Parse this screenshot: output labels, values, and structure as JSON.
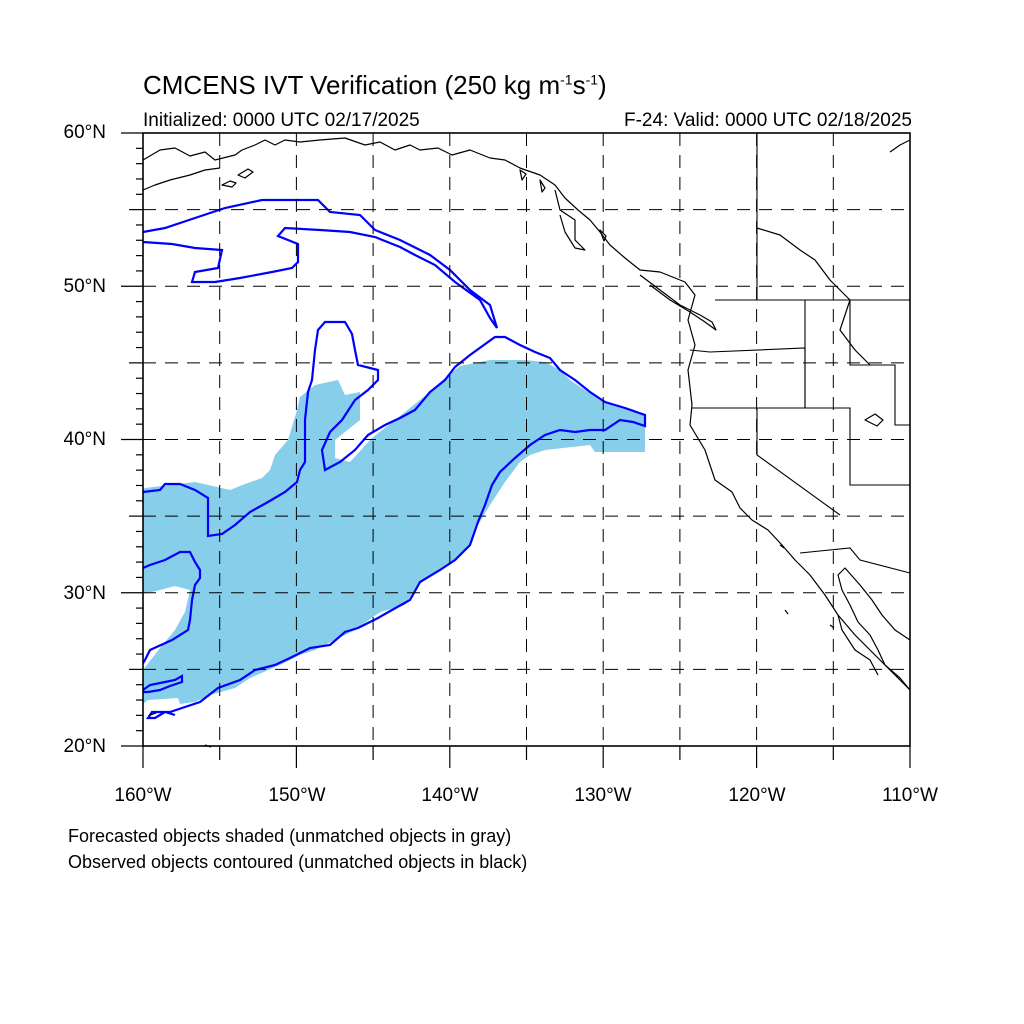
{
  "title": {
    "main": "CMCENS IVT Verification (250 kg m",
    "sup1": "-1",
    "mid": "s",
    "sup2": "-1",
    "end": ")"
  },
  "subtitle": {
    "initialized": "Initialized: 0000 UTC 02/17/2025",
    "valid": "F-24: Valid: 0000 UTC 02/18/2025"
  },
  "map": {
    "lon_range": [
      -160,
      -110
    ],
    "lat_range": [
      20,
      60
    ],
    "lat_ticks": [
      "20°N",
      "30°N",
      "40°N",
      "50°N",
      "60°N"
    ],
    "lon_ticks": [
      "160°W",
      "150°W",
      "140°W",
      "130°W",
      "120°W",
      "110°W"
    ],
    "gridlines": "dashed",
    "colors": {
      "forecast_fill": "#87ceeb",
      "observed_contour": "#0000ff",
      "coastline": "#000000"
    }
  },
  "notes": {
    "line1": "Forecasted objects shaded (unmatched objects in gray)",
    "line2": "Observed objects contoured (unmatched objects in black)"
  }
}
